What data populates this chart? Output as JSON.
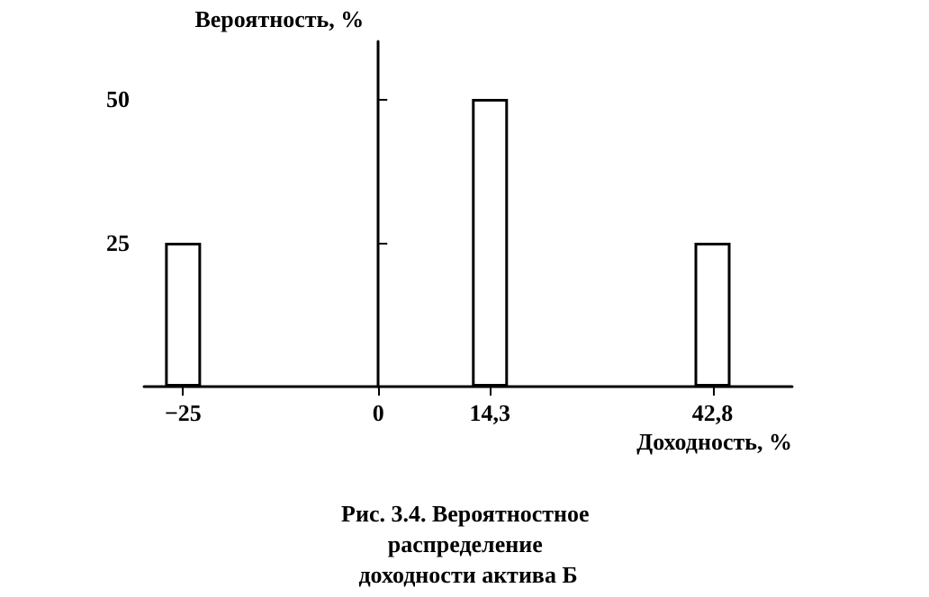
{
  "chart_data": {
    "type": "bar",
    "title": "Рис. 3.4. Вероятностное распределение доходности актива Б",
    "xlabel": "Доходность, %",
    "ylabel": "Вероятность, %",
    "x": [
      -25,
      14.3,
      42.8
    ],
    "values": [
      25,
      50,
      25
    ],
    "color": "#ffffff",
    "xlim": [
      -30,
      53
    ],
    "xticks": [
      {
        "value": -25,
        "label": "−25"
      },
      0,
      {
        "value": 14.3,
        "label": "14,3"
      },
      {
        "value": 42.8,
        "label": "42,8"
      }
    ],
    "ylim": [
      0,
      60
    ],
    "yticks": [
      25,
      50
    ]
  }
}
